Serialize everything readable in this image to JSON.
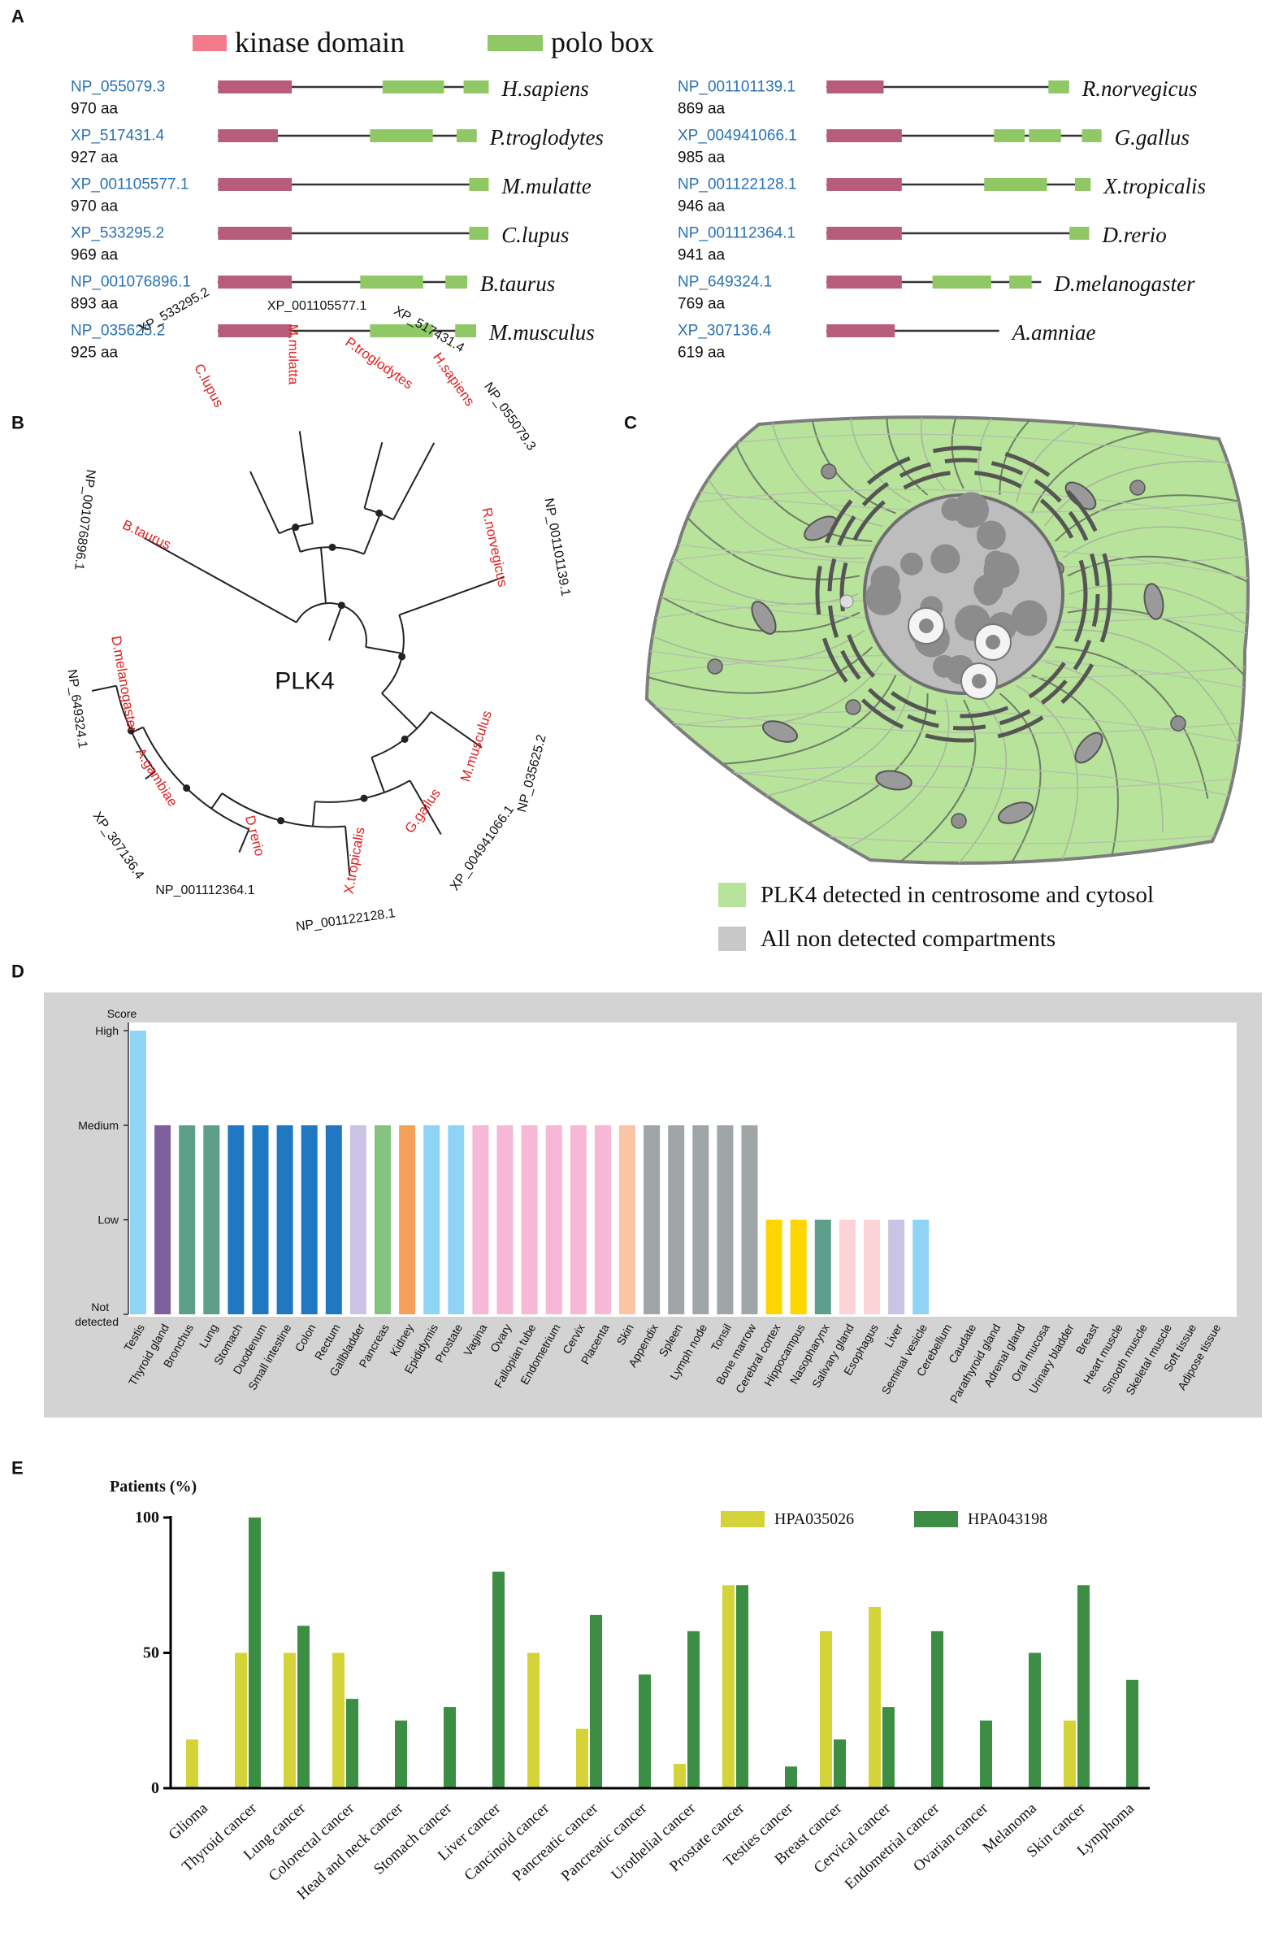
{
  "panel_a": {
    "label": "A",
    "legend": [
      {
        "name": "kinase domain",
        "color": "#f47b8c"
      },
      {
        "name": "polo box",
        "color": "#8fc865"
      }
    ],
    "kinase_color": "#b85c7c",
    "polo_color": "#8fc865",
    "columns": [
      [
        {
          "accession": "NP_055079.3",
          "length": 970,
          "length_label": "970 aa",
          "species": "H.sapiens",
          "kinase": [
            1,
            265
          ],
          "polo_boxes": [
            [
              590,
              810
            ],
            [
              880,
              970
            ]
          ]
        },
        {
          "accession": "XP_517431.4",
          "length": 927,
          "length_label": "927 aa",
          "species": "P.troglodytes",
          "kinase": [
            1,
            215
          ],
          "polo_boxes": [
            [
              545,
              770
            ],
            [
              855,
              927
            ]
          ]
        },
        {
          "accession": "XP_001105577.1",
          "length": 970,
          "length_label": "970 aa",
          "species": "M.mulatte",
          "kinase": [
            1,
            265
          ],
          "polo_boxes": [
            [
              900,
              970
            ]
          ]
        },
        {
          "accession": "XP_533295.2",
          "length": 969,
          "length_label": "969 aa",
          "species": "C.lupus",
          "kinase": [
            1,
            265
          ],
          "polo_boxes": [
            [
              900,
              969
            ]
          ]
        },
        {
          "accession": "NP_001076896.1",
          "length": 893,
          "length_label": "893 aa",
          "species": "B.taurus",
          "kinase": [
            1,
            265
          ],
          "polo_boxes": [
            [
              510,
              735
            ],
            [
              815,
              893
            ]
          ]
        },
        {
          "accession": "NP_035625.2",
          "length": 925,
          "length_label": "925 aa",
          "species": "M.musculus",
          "kinase": [
            1,
            265
          ],
          "polo_boxes": [
            [
              545,
              770
            ],
            [
              850,
              925
            ]
          ]
        }
      ],
      [
        {
          "accession": "NP_001101139.1",
          "length": 869,
          "length_label": "869 aa",
          "species": "R.norvegicus",
          "kinase": [
            1,
            205
          ],
          "polo_boxes": [
            [
              795,
              869
            ]
          ]
        },
        {
          "accession": "XP_004941066.1",
          "length": 985,
          "length_label": "985 aa",
          "species": "G.gallus",
          "kinase": [
            1,
            270
          ],
          "polo_boxes": [
            [
              600,
              710
            ],
            [
              725,
              840
            ],
            [
              915,
              985
            ]
          ]
        },
        {
          "accession": "NP_001122128.1",
          "length": 946,
          "length_label": "946 aa",
          "species": "X.tropicalis",
          "kinase": [
            1,
            270
          ],
          "polo_boxes": [
            [
              565,
              790
            ],
            [
              890,
              946
            ]
          ]
        },
        {
          "accession": "NP_001112364.1",
          "length": 941,
          "length_label": "941 aa",
          "species": "D.rerio",
          "kinase": [
            1,
            270
          ],
          "polo_boxes": [
            [
              870,
              941
            ]
          ]
        },
        {
          "accession": "NP_649324.1",
          "length": 769,
          "length_label": "769 aa",
          "species": "D.melanogaster",
          "kinase": [
            1,
            270
          ],
          "polo_boxes": [
            [
              380,
              590
            ],
            [
              655,
              735
            ]
          ]
        },
        {
          "accession": "XP_307136.4",
          "length": 619,
          "length_label": "619 aa",
          "species": "A.amniae",
          "kinase": [
            1,
            245
          ],
          "polo_boxes": []
        }
      ]
    ]
  },
  "panel_b": {
    "label": "B",
    "center_label": "PLK4",
    "leaves": [
      {
        "species": "C.lupus",
        "accession": "XP_533295.2"
      },
      {
        "species": "M.mulatta",
        "accession": "XP_001105577.1"
      },
      {
        "species": "P.troglodytes",
        "accession": "XP_517431.4"
      },
      {
        "species": "H.sapiens",
        "accession": "NP_055079.3"
      },
      {
        "species": "R.norvegicus",
        "accession": "NP_001101139.1"
      },
      {
        "species": "M.musculus",
        "accession": "NP_035625.2"
      },
      {
        "species": "G.gallus",
        "accession": "XP_004941066.1"
      },
      {
        "species": "X.tropicalis",
        "accession": "NP_001122128.1"
      },
      {
        "species": "D.rerio",
        "accession": "NP_001112364.1"
      },
      {
        "species": "A.gambiae",
        "accession": "XP_307136.4"
      },
      {
        "species": "D.melanogaster",
        "accession": "NP_649324.1"
      },
      {
        "species": "B.taurus",
        "accession": "NP_001076896.1"
      }
    ]
  },
  "panel_c": {
    "label": "C",
    "legend": [
      {
        "name": "PLK4 detected in centrosome and cytosol",
        "color": "#b8e39a"
      },
      {
        "name": "All non detected compartments",
        "color": "#c8c8c8"
      }
    ]
  },
  "chart_data": [
    {
      "panel_label": "D",
      "type": "bar",
      "y_axis_label": "Score",
      "categories": [
        "Testis",
        "Thyroid gland",
        "Bronchus",
        "Lung",
        "Stomach",
        "Duodenum",
        "Small intestine",
        "Colon",
        "Rectum",
        "Gallbladder",
        "Pancreas",
        "Kidney",
        "Epididymis",
        "Prostate",
        "Vagina",
        "Ovary",
        "Fallopian tube",
        "Endometrium",
        "Cervix",
        "Placenta",
        "Skin",
        "Appendix",
        "Spleen",
        "Lymph node",
        "Tonsil",
        "Bone marrow",
        "Cerebral cortex",
        "Hippocampus",
        "Nasopharynx",
        "Salivary gland",
        "Esophagus",
        "Liver",
        "Seminal vesicle",
        "Cerebellum",
        "Caudate",
        "Parathyroid gland",
        "Adrenal gland",
        "Oral mucosa",
        "Urinary bladder",
        "Breast",
        "Heart muscle",
        "Smooth muscle",
        "Skeletal muscle",
        "Soft tissue",
        "Adipose tissue"
      ],
      "values": [
        3,
        2,
        2,
        2,
        2,
        2,
        2,
        2,
        2,
        2,
        2,
        2,
        2,
        2,
        2,
        2,
        2,
        2,
        2,
        2,
        2,
        2,
        2,
        2,
        2,
        2,
        1,
        1,
        1,
        1,
        1,
        1,
        1,
        0,
        0,
        0,
        0,
        0,
        0,
        0,
        0,
        0,
        0,
        0,
        0
      ],
      "colors": [
        "#8fd4f5",
        "#7c5f9c",
        "#5e9f8b",
        "#5e9f8b",
        "#1f78c1",
        "#1f78c1",
        "#1f78c1",
        "#1f78c1",
        "#1f78c1",
        "#cbc3e3",
        "#84c37f",
        "#f5a05a",
        "#8fd4f5",
        "#8fd4f5",
        "#f6b8d6",
        "#f6b8d6",
        "#f6b8d6",
        "#f6b8d6",
        "#f6b8d6",
        "#f6b8d6",
        "#fbc5a5",
        "#a0a5a8",
        "#a0a5a8",
        "#a0a5a8",
        "#a0a5a8",
        "#a0a5a8",
        "#ffd500",
        "#ffd500",
        "#5e9f8b",
        "#fcd3d6",
        "#fcd3d6",
        "#cbc3e3",
        "#8fd4f5",
        "#ffd500",
        "#ffd500",
        "#7c5f9c",
        "#7c5f9c",
        "#fcd3d6",
        "#f5a05a",
        "#f6b8d6",
        "#f08080",
        "#f08080",
        "#f08080",
        "#f08080",
        "#f08080"
      ],
      "ylim": [
        0,
        3
      ],
      "yticks": [
        {
          "value": 0,
          "label": "Not detected"
        },
        {
          "value": 1,
          "label": "Low"
        },
        {
          "value": 2,
          "label": "Medium"
        },
        {
          "value": 3,
          "label": "High"
        }
      ]
    },
    {
      "panel_label": "E",
      "type": "grouped_bar",
      "y_axis_label": "Patients (%)",
      "categories": [
        "Glioma",
        "Thyroid cancer",
        "Lung cancer",
        "Colorectal cancer",
        "Head and neck cancer",
        "Stomach cancer",
        "Liver cancer",
        "Cancinoid cancer",
        "Pancreatic cancer",
        "Pancreatic cancer",
        "Urothelial cancer",
        "Prostate cancer",
        "Testies cancer",
        "Breast cancer",
        "Cervical cancer",
        "Endometrial cancer",
        "Ovarian cancer",
        "Melanoma",
        "Skin cancer",
        "Lymphoma"
      ],
      "series": [
        {
          "name": "HPA035026",
          "color": "#d5d33a",
          "values": [
            18,
            50,
            50,
            50,
            0,
            0,
            0,
            50,
            22,
            0,
            9,
            75,
            0,
            58,
            67,
            0,
            0,
            0,
            25,
            0
          ]
        },
        {
          "name": "HPA043198",
          "color": "#3b8e44",
          "values": [
            0,
            100,
            60,
            33,
            25,
            30,
            80,
            0,
            64,
            42,
            58,
            75,
            8,
            18,
            30,
            58,
            25,
            50,
            75,
            40
          ]
        }
      ],
      "ylim": [
        0,
        100
      ],
      "yticks": [
        0,
        50,
        100
      ]
    }
  ]
}
